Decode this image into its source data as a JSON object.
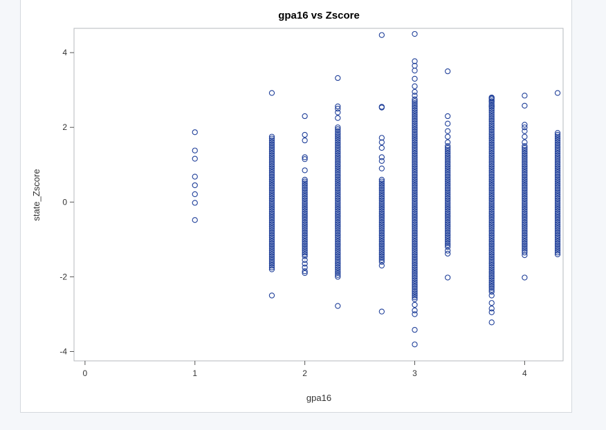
{
  "chart_data": {
    "type": "scatter",
    "title": "gpa16 vs Zscore",
    "xlabel": "gpa16",
    "ylabel": "state_Zscore",
    "xlim": [
      -0.1,
      4.35
    ],
    "ylim": [
      -4.25,
      4.65
    ],
    "x_ticks": [
      0,
      1,
      2,
      3,
      4
    ],
    "y_ticks": [
      -4,
      -2,
      0,
      2,
      4
    ],
    "marker_color": "#1f3f99",
    "marker": "open-circle",
    "grid": false,
    "columns": [
      {
        "x": 1.0,
        "points": [
          1.87,
          1.38,
          1.16,
          0.68,
          0.45,
          0.21,
          -0.02,
          -0.48
        ]
      },
      {
        "x": 1.7,
        "dense": [
          -1.75,
          1.75
        ],
        "points": [
          2.92,
          -1.8,
          -2.5
        ]
      },
      {
        "x": 2.0,
        "dense": [
          -1.4,
          0.6
        ],
        "points": [
          2.3,
          1.8,
          1.65,
          1.2,
          1.15,
          0.85,
          -1.45,
          -1.55,
          -1.65,
          -1.75,
          -1.85,
          -1.9
        ]
      },
      {
        "x": 2.3,
        "dense": [
          -2.0,
          2.0
        ],
        "points": [
          3.32,
          2.56,
          2.5,
          2.4,
          2.25,
          -2.78
        ]
      },
      {
        "x": 2.7,
        "dense": [
          -1.6,
          0.6
        ],
        "points": [
          4.47,
          2.55,
          2.53,
          1.72,
          1.6,
          1.45,
          1.2,
          1.1,
          0.9,
          -1.7,
          -2.93
        ]
      },
      {
        "x": 3.0,
        "dense": [
          -2.6,
          2.75
        ],
        "points": [
          4.5,
          3.77,
          3.65,
          3.52,
          3.3,
          3.1,
          2.95,
          2.85,
          -2.75,
          -2.9,
          -3.0,
          -3.42,
          -3.81
        ]
      },
      {
        "x": 3.3,
        "dense": [
          -1.2,
          1.5
        ],
        "points": [
          3.5,
          2.3,
          2.1,
          1.9,
          1.75,
          1.6,
          -1.3,
          -1.38,
          -2.02
        ]
      },
      {
        "x": 3.7,
        "dense": [
          -2.4,
          2.8
        ],
        "points": [
          2.78,
          2.7,
          2.6,
          2.55,
          -2.5,
          -2.7,
          -2.85,
          -2.95,
          -3.22
        ]
      },
      {
        "x": 4.0,
        "dense": [
          -1.3,
          1.5
        ],
        "points": [
          2.85,
          2.58,
          2.07,
          2.0,
          1.9,
          1.75,
          1.6,
          -1.35,
          -1.42,
          -2.02
        ]
      },
      {
        "x": 4.3,
        "dense": [
          -1.35,
          1.85
        ],
        "points": [
          2.92,
          -1.4
        ]
      }
    ]
  }
}
